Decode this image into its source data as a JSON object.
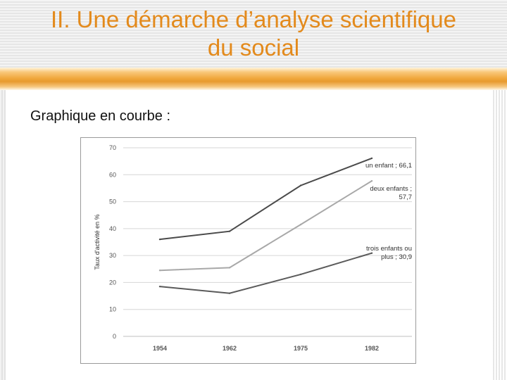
{
  "slide": {
    "title_line1": "II. Une démarche d’analyse scientifique",
    "title_line2": "du social",
    "subtitle": "Graphique en courbe :",
    "accent_color": "#e38a1c"
  },
  "chart_data": {
    "type": "line",
    "categories": [
      "1954",
      "1962",
      "1975",
      "1982"
    ],
    "ylabel": "Taux d'activité en %",
    "ylim": [
      0,
      70
    ],
    "yticks": [
      0,
      10,
      20,
      30,
      40,
      50,
      60,
      70
    ],
    "grid": true,
    "series": [
      {
        "name": "un enfant",
        "values": [
          36,
          39,
          56,
          66.1
        ],
        "label": [
          "un enfant ; 66,1"
        ],
        "color": "#4a4a4a"
      },
      {
        "name": "deux enfants",
        "values": [
          24.5,
          25.5,
          41.5,
          57.7
        ],
        "label": [
          "deux enfants ;",
          "57,7"
        ],
        "color": "#a8a8a8"
      },
      {
        "name": "trois enfants ou plus",
        "values": [
          18.5,
          16,
          23,
          30.9
        ],
        "label": [
          "trois enfants ou",
          "plus ; 30,9"
        ],
        "color": "#5a5a5a"
      }
    ]
  }
}
